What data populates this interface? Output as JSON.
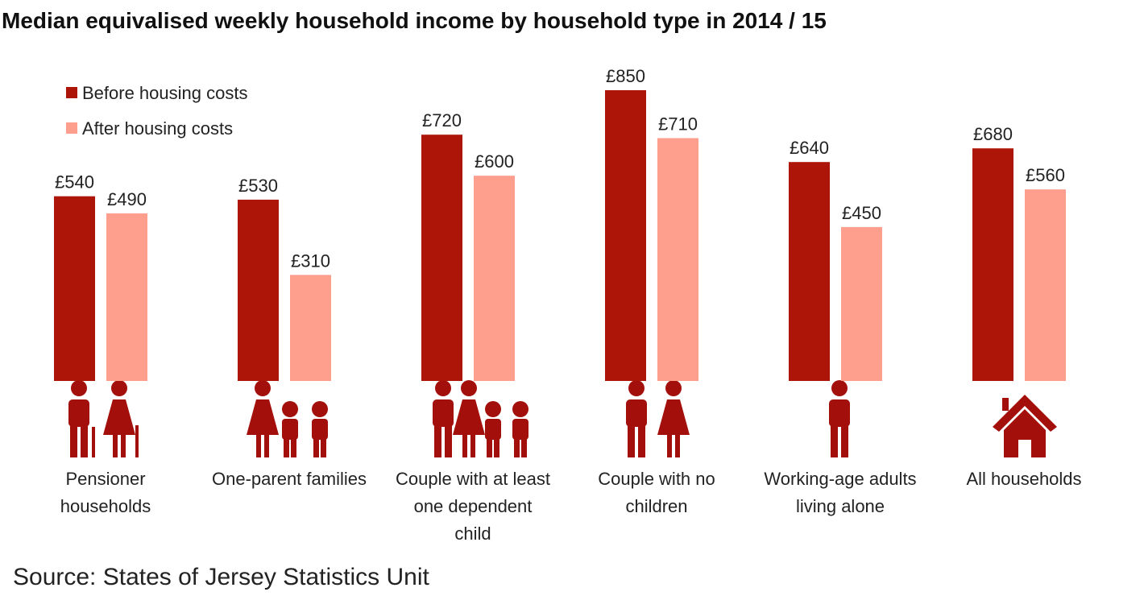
{
  "chart_data": {
    "type": "bar",
    "title": "Median equivalised weekly household income by household type in 2014 / 15",
    "categories": [
      "Pensioner households",
      "One-parent families",
      "Couple with at least one dependent child",
      "Couple with no children",
      "Working-age adults living alone",
      "All households"
    ],
    "series": [
      {
        "name": "Before housing costs",
        "color": "#ad1508",
        "values": [
          540,
          530,
          720,
          850,
          640,
          680
        ],
        "value_labels": [
          "£540",
          "£530",
          "£720",
          "£850",
          "£640",
          "£680"
        ]
      },
      {
        "name": "After housing costs",
        "color": "#fd9f8c",
        "values": [
          490,
          310,
          600,
          710,
          450,
          560
        ],
        "value_labels": [
          "£490",
          "£310",
          "£600",
          "£710",
          "£450",
          "£560"
        ]
      }
    ],
    "legend": "top-left",
    "source": "Source: States of Jersey Statistics Unit"
  }
}
